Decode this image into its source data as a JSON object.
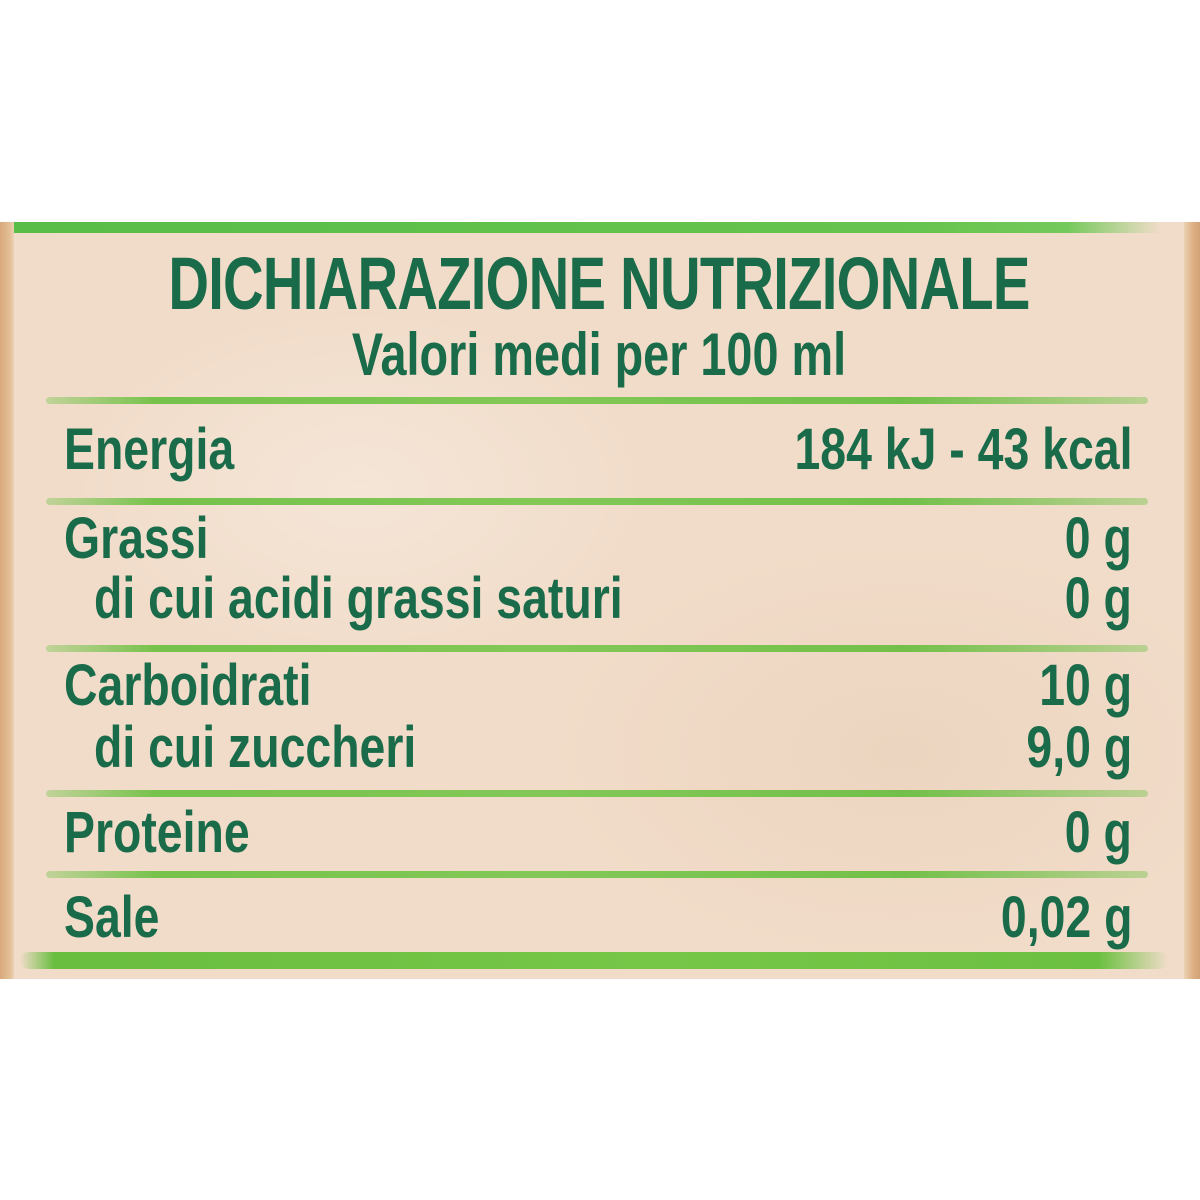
{
  "nutrition": {
    "title": "DICHIARAZIONE NUTRIZIONALE",
    "subtitle": "Valori medi per 100 ml",
    "rows": [
      {
        "label": "Energia",
        "value": "184 kJ - 43 kcal"
      },
      {
        "label": "Grassi",
        "value": "0 g"
      },
      {
        "label": "di cui acidi grassi saturi",
        "value": "0 g"
      },
      {
        "label": "Carboidrati",
        "value": "10 g"
      },
      {
        "label": "di cui zuccheri",
        "value": "9,0 g"
      },
      {
        "label": "Proteine",
        "value": "0 g"
      },
      {
        "label": "Sale",
        "value": "0,02 g"
      }
    ]
  },
  "colors": {
    "text_green": "#1a6b4a",
    "line_green": "#76c24b",
    "band_green": "#69bd3f",
    "label_beige": "#f1dcc9",
    "edge_tan": "#ddb084",
    "page_background": "#ffffff"
  }
}
